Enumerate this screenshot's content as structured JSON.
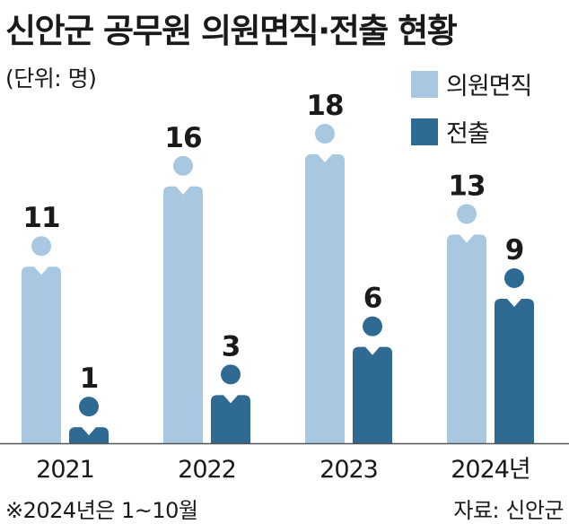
{
  "chart_data": {
    "type": "bar",
    "title": "신안군 공무원 의원면직·전출 현황",
    "unit_label": "(단위: 명)",
    "categories": [
      "2021",
      "2022",
      "2023",
      "2024년"
    ],
    "series": [
      {
        "name": "의원면직",
        "values": [
          11,
          16,
          18,
          13
        ],
        "color": "#a8c8e2"
      },
      {
        "name": "전출",
        "values": [
          1,
          3,
          6,
          9
        ],
        "color": "#2f6a92"
      }
    ],
    "legend_position": "top-right",
    "grid": false,
    "ylim": [
      0,
      18
    ],
    "note": "※2024년은 1~10월",
    "source": "자료: 신안군"
  }
}
